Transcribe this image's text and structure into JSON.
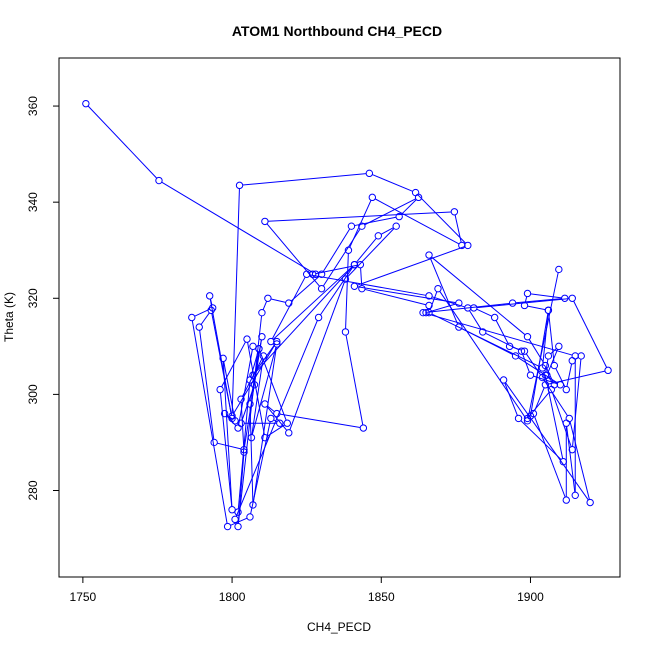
{
  "chart_data": {
    "type": "line",
    "title": "ATOM1 Northbound CH4_PECD",
    "xlabel": "CH4_PECD",
    "ylabel": "Theta (K)",
    "xlim": [
      1742,
      1930
    ],
    "ylim": [
      262,
      370
    ],
    "xticks": [
      1750,
      1800,
      1850,
      1900
    ],
    "yticks": [
      280,
      300,
      320,
      340,
      360
    ],
    "grid": false,
    "legend": "none",
    "markers": "open-circle",
    "color": "#0000ff",
    "series": [
      {
        "x": [
          1751.0,
          1775.5,
          1828.0,
          1827.0,
          1843.0,
          1843.5,
          1866.0,
          1865.0,
          1876.0,
          1841.0,
          1879.0,
          1861.5,
          1846.0,
          1802.5,
          1800.0,
          1815.0,
          1807.0,
          1841.0,
          1829.0,
          1801.0,
          1802.0,
          1806.0,
          1809.0,
          1807.0,
          1802.0,
          1797.5,
          1801.0,
          1797.0,
          1800.0,
          1796.0,
          1805.0,
          1811.0,
          1818.5,
          1809.0,
          1807.5,
          1803.0,
          1816.0,
          1813.0,
          1806.0,
          1798.5,
          1786.5,
          1793.5,
          1792.5,
          1800.0,
          1793.0,
          1789.0,
          1794.0,
          1804.0,
          1810.0,
          1806.0,
          1807.0,
          1815.0,
          1806.5,
          1810.5,
          1803.0,
          1804.0,
          1802.0,
          1810.0,
          1812.0,
          1819.0,
          1830.0,
          1840.0,
          1856.0,
          1862.5,
          1843.5,
          1830.0,
          1811.0,
          1874.5,
          1877.0,
          1847.0,
          1839.0,
          1838.0,
          1844.0,
          1815.0,
          1811.0,
          1819.0,
          1838.0,
          1855.0,
          1849.0,
          1841.0,
          1813.0,
          1825.0,
          1866.0,
          1879.0,
          1884.0,
          1897.0,
          1900.0,
          1910.0,
          1895.0,
          1876.0,
          1866.0,
          1899.0,
          1905.0,
          1908.0,
          1905.5,
          1909.5,
          1906.0,
          1905.0,
          1911.0,
          1896.0,
          1891.0,
          1920.0,
          1913.0,
          1904.0,
          1898.0,
          1893.0,
          1888.0,
          1881.0,
          1914.0,
          1926.0,
          1905.0,
          1901.0,
          1912.0,
          1912.0,
          1915.0,
          1915.0,
          1864.0,
          1894.0,
          1911.5,
          1899.0,
          1898.0,
          1906.0,
          1908.0,
          1912.0,
          1914.0,
          1917.0,
          1914.0,
          1907.0,
          1899.0,
          1900.0,
          1906.0,
          1904.0,
          1866.0,
          1869.0,
          1899.0,
          1909.5
        ],
        "y": [
          360.5,
          344.5,
          325.0,
          325.0,
          327.0,
          322.0,
          318.5,
          317.0,
          319.0,
          322.5,
          331.0,
          342.0,
          346.0,
          343.5,
          295.5,
          311.0,
          304.0,
          327.0,
          316.0,
          274.0,
          275.5,
          303.0,
          309.5,
          310.0,
          293.0,
          296.0,
          294.5,
          307.5,
          276.0,
          301.0,
          311.5,
          291.0,
          294.0,
          309.5,
          302.0,
          294.0,
          294.0,
          295.0,
          274.5,
          272.5,
          316.0,
          318.0,
          320.5,
          295.0,
          317.5,
          314.0,
          290.0,
          288.5,
          312.0,
          298.0,
          277.0,
          310.5,
          291.0,
          308.0,
          299.0,
          288.0,
          272.5,
          317.0,
          320.0,
          319.0,
          325.0,
          335.0,
          337.0,
          341.0,
          335.0,
          322.0,
          336.0,
          338.0,
          331.0,
          341.0,
          330.0,
          313.0,
          293.0,
          296.0,
          298.0,
          292.0,
          324.0,
          335.0,
          333.0,
          327.0,
          311.0,
          325.0,
          320.5,
          318.0,
          313.0,
          309.0,
          304.0,
          302.0,
          308.0,
          314.0,
          329.0,
          312.0,
          306.0,
          302.0,
          304.0,
          310.0,
          308.0,
          304.0,
          286.0,
          295.0,
          303.0,
          277.5,
          295.0,
          303.5,
          309.0,
          310.0,
          316.0,
          318.0,
          320.0,
          305.0,
          302.0,
          296.0,
          278.0,
          294.0,
          279.0,
          308.0,
          317.0,
          319.0,
          320.0,
          321.0,
          318.5,
          317.5,
          306.0,
          301.0,
          307.0,
          308.0,
          288.5,
          301.0,
          295.0,
          295.5,
          317.5,
          305.5,
          317.0,
          322.0,
          294.5,
          326.0
        ]
      }
    ]
  }
}
